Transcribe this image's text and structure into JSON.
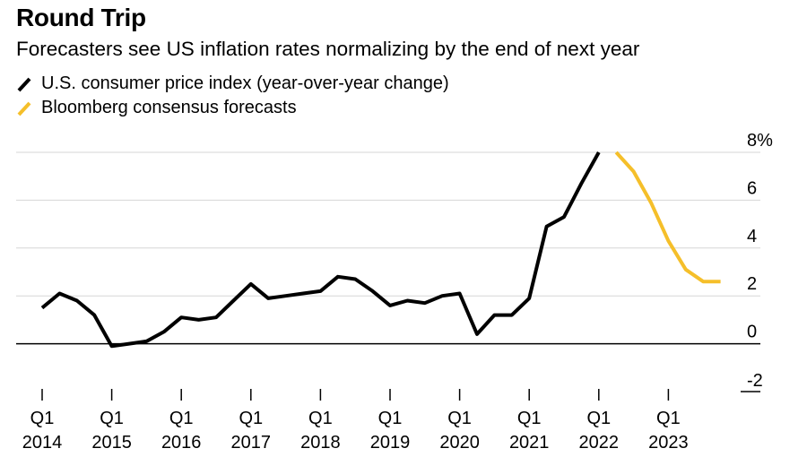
{
  "title": "Round Trip",
  "subtitle": "Forecasters see US inflation rates normalizing by the end of next year",
  "legend": [
    {
      "label": "U.S. consumer price index (year-over-year change)",
      "color": "#000000"
    },
    {
      "label": "Bloomberg consensus forecasts",
      "color": "#f5bf2a"
    }
  ],
  "chart_data": {
    "type": "line",
    "x_unit": "quarter",
    "ylim": [
      -2,
      8
    ],
    "y_ticks": [
      -2,
      0,
      2,
      4,
      6,
      8
    ],
    "y_tick_labels": [
      "-2",
      "0",
      "2",
      "4",
      "6",
      "8%"
    ],
    "x_ticks": [
      {
        "x": "2014-Q1",
        "top": "Q1",
        "bottom": "2014"
      },
      {
        "x": "2015-Q1",
        "top": "Q1",
        "bottom": "2015"
      },
      {
        "x": "2016-Q1",
        "top": "Q1",
        "bottom": "2016"
      },
      {
        "x": "2017-Q1",
        "top": "Q1",
        "bottom": "2017"
      },
      {
        "x": "2018-Q1",
        "top": "Q1",
        "bottom": "2018"
      },
      {
        "x": "2019-Q1",
        "top": "Q1",
        "bottom": "2019"
      },
      {
        "x": "2020-Q1",
        "top": "Q1",
        "bottom": "2020"
      },
      {
        "x": "2021-Q1",
        "top": "Q1",
        "bottom": "2021"
      },
      {
        "x": "2022-Q1",
        "top": "Q1",
        "bottom": "2022"
      },
      {
        "x": "2023-Q1",
        "top": "Q1",
        "bottom": "2023"
      }
    ],
    "grid": "horizontal",
    "axis_side": "right",
    "series": [
      {
        "name": "U.S. consumer price index (year-over-year change)",
        "color": "#000000",
        "points": [
          [
            "2014-Q1",
            1.5
          ],
          [
            "2014-Q2",
            2.1
          ],
          [
            "2014-Q3",
            1.8
          ],
          [
            "2014-Q4",
            1.2
          ],
          [
            "2015-Q1",
            -0.1
          ],
          [
            "2015-Q2",
            0.0
          ],
          [
            "2015-Q3",
            0.1
          ],
          [
            "2015-Q4",
            0.5
          ],
          [
            "2016-Q1",
            1.1
          ],
          [
            "2016-Q2",
            1.0
          ],
          [
            "2016-Q3",
            1.1
          ],
          [
            "2016-Q4",
            1.8
          ],
          [
            "2017-Q1",
            2.5
          ],
          [
            "2017-Q2",
            1.9
          ],
          [
            "2017-Q3",
            2.0
          ],
          [
            "2017-Q4",
            2.1
          ],
          [
            "2018-Q1",
            2.2
          ],
          [
            "2018-Q2",
            2.8
          ],
          [
            "2018-Q3",
            2.7
          ],
          [
            "2018-Q4",
            2.2
          ],
          [
            "2019-Q1",
            1.6
          ],
          [
            "2019-Q2",
            1.8
          ],
          [
            "2019-Q3",
            1.7
          ],
          [
            "2019-Q4",
            2.0
          ],
          [
            "2020-Q1",
            2.1
          ],
          [
            "2020-Q2",
            0.4
          ],
          [
            "2020-Q3",
            1.2
          ],
          [
            "2020-Q4",
            1.2
          ],
          [
            "2021-Q1",
            1.9
          ],
          [
            "2021-Q2",
            4.9
          ],
          [
            "2021-Q3",
            5.3
          ],
          [
            "2021-Q4",
            6.7
          ],
          [
            "2022-Q1",
            8.0
          ]
        ]
      },
      {
        "name": "Bloomberg consensus forecasts",
        "color": "#f5bf2a",
        "points": [
          [
            "2022-Q2",
            8.0
          ],
          [
            "2022-Q3",
            7.2
          ],
          [
            "2022-Q4",
            5.9
          ],
          [
            "2023-Q1",
            4.3
          ],
          [
            "2023-Q2",
            3.1
          ],
          [
            "2023-Q3",
            2.6
          ],
          [
            "2023-Q4",
            2.6
          ]
        ]
      }
    ]
  }
}
